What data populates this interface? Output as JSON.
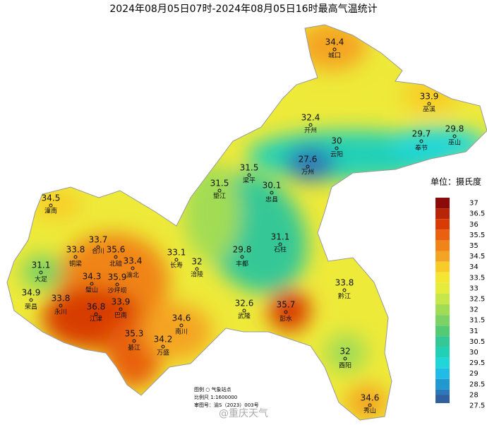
{
  "title": "2024年08月05日07时-2024年08月05日16时最高气温统计",
  "stations": [
    {
      "name": "城口",
      "value": 34.4
    },
    {
      "name": "巫溪",
      "value": 33.9
    },
    {
      "name": "开州",
      "value": 32.4
    },
    {
      "name": "云阳",
      "value": 30
    },
    {
      "name": "奉节",
      "value": 29.7
    },
    {
      "name": "巫山",
      "value": 29.8
    },
    {
      "name": "万州",
      "value": 27.6
    },
    {
      "name": "梁平",
      "value": 31.5
    },
    {
      "name": "垫江",
      "value": 31.5
    },
    {
      "name": "忠县",
      "value": 30.1
    },
    {
      "name": "石柱",
      "value": 31.1
    },
    {
      "name": "丰都",
      "value": 29.8
    },
    {
      "name": "长寿",
      "value": 33.1
    },
    {
      "name": "涪陵",
      "value": 32
    },
    {
      "name": "武隆",
      "value": 32.6
    },
    {
      "name": "彭水",
      "value": 35.7
    },
    {
      "name": "黔江",
      "value": 33.8
    },
    {
      "name": "酉阳",
      "value": 32
    },
    {
      "name": "秀山",
      "value": 34.6
    },
    {
      "name": "潼南",
      "value": 34.5
    },
    {
      "name": "合川",
      "value": 33.7
    },
    {
      "name": "北碚",
      "value": 35.6
    },
    {
      "name": "渝北",
      "value": 33.4
    },
    {
      "name": "铜梁",
      "value": 33.8
    },
    {
      "name": "大足",
      "value": 31.1
    },
    {
      "name": "璧山",
      "value": 34.3
    },
    {
      "name": "沙坪坝",
      "value": 35.9
    },
    {
      "name": "荣昌",
      "value": 34.9
    },
    {
      "name": "永川",
      "value": 33.8
    },
    {
      "name": "巴南",
      "value": 33.9
    },
    {
      "name": "江津",
      "value": 36.8
    },
    {
      "name": "南川",
      "value": 34.6
    },
    {
      "name": "綦江",
      "value": 35.3
    },
    {
      "name": "万盛",
      "value": 34.2
    }
  ],
  "legend": {
    "title": "单位：摄氏度",
    "items": [
      {
        "value": 37,
        "color": "#8b0a0a"
      },
      {
        "value": 36.5,
        "color": "#b82408"
      },
      {
        "value": 36,
        "color": "#d83c04"
      },
      {
        "value": 35.5,
        "color": "#e86010"
      },
      {
        "value": 35,
        "color": "#f08418"
      },
      {
        "value": 34.5,
        "color": "#f4a424"
      },
      {
        "value": 34,
        "color": "#f8cc28"
      },
      {
        "value": 33.5,
        "color": "#f6e634"
      },
      {
        "value": 33,
        "color": "#e4ec3c"
      },
      {
        "value": 32.5,
        "color": "#c6e64a"
      },
      {
        "value": 32,
        "color": "#a2dc54"
      },
      {
        "value": 31.5,
        "color": "#7cd262"
      },
      {
        "value": 31,
        "color": "#54ca74"
      },
      {
        "value": 30.5,
        "color": "#34c896"
      },
      {
        "value": 30,
        "color": "#22d0b6"
      },
      {
        "value": 29.5,
        "color": "#20d6d8"
      },
      {
        "value": 29,
        "color": "#20bce6"
      },
      {
        "value": 28.5,
        "color": "#2298d0"
      },
      {
        "value": 28,
        "color": "#2a78b8"
      },
      {
        "value": 27.5,
        "color": "#30609e"
      }
    ]
  },
  "notes": [
    "图例  ○  气象站点",
    "比例尺  1:1600000",
    "审图号：渝S（2023）003号"
  ],
  "watermark": "@重庆天气"
}
